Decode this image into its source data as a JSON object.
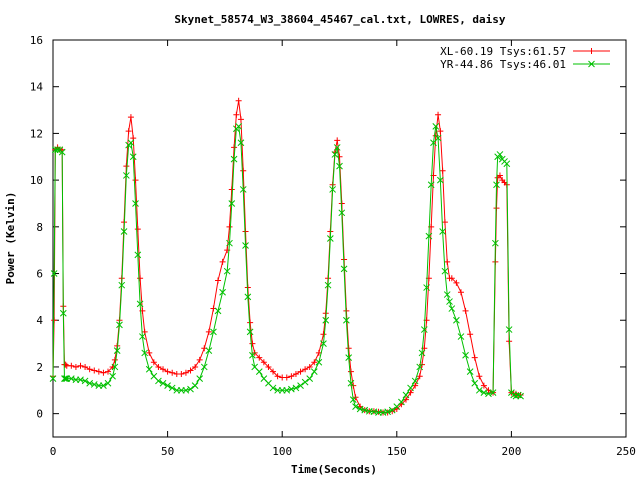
{
  "chart_data": {
    "type": "line",
    "title": "Skynet_58574_W3_38604_45467_cal.txt, LOWRES, daisy",
    "xlabel": "Time(Seconds)",
    "ylabel": "Power (Kelvin)",
    "xlim": [
      0,
      250
    ],
    "ylim": [
      -1,
      16
    ],
    "xticks": [
      0,
      50,
      100,
      150,
      200,
      250
    ],
    "yticks": [
      0,
      2,
      4,
      6,
      8,
      10,
      12,
      14,
      16
    ],
    "grid": false,
    "legend_position": "top-right",
    "series": [
      {
        "name": "XL-60.19 Tsys:61.57",
        "color": "#ff0000",
        "marker": "+",
        "x": [
          0,
          0.5,
          1,
          2,
          3,
          4,
          4.5,
          5,
          5.5,
          6,
          8,
          10,
          12,
          14,
          16,
          18,
          20,
          22,
          24,
          26,
          27,
          28,
          29,
          30,
          31,
          32,
          33,
          34,
          35,
          36,
          37,
          38,
          39,
          40,
          42,
          44,
          46,
          48,
          50,
          52,
          54,
          56,
          58,
          60,
          62,
          64,
          66,
          68,
          70,
          72,
          74,
          76,
          77,
          78,
          79,
          80,
          81,
          82,
          83,
          84,
          85,
          86,
          87,
          88,
          90,
          92,
          94,
          96,
          98,
          100,
          102,
          104,
          106,
          108,
          110,
          112,
          114,
          116,
          118,
          119,
          120,
          121,
          122,
          123,
          124,
          125,
          126,
          127,
          128,
          129,
          130,
          131,
          132,
          134,
          136,
          138,
          140,
          142,
          144,
          146,
          148,
          150,
          152,
          154,
          156,
          158,
          160,
          161,
          162,
          163,
          164,
          165,
          166,
          167,
          168,
          169,
          170,
          171,
          172,
          173,
          174,
          176,
          178,
          180,
          182,
          184,
          186,
          188,
          190,
          192,
          193,
          193.5,
          194,
          195,
          196,
          197,
          198,
          199,
          200,
          201,
          202,
          203,
          204
        ],
        "y": [
          1.6,
          4.0,
          11.3,
          11.4,
          11.3,
          11.3,
          4.6,
          2.1,
          2.1,
          2.05,
          2.05,
          2.0,
          2.05,
          2.0,
          1.9,
          1.85,
          1.8,
          1.75,
          1.8,
          2.0,
          2.3,
          2.9,
          4.0,
          5.8,
          8.2,
          10.6,
          12.1,
          12.7,
          11.8,
          10.0,
          7.9,
          5.8,
          4.4,
          3.5,
          2.6,
          2.2,
          2.0,
          1.9,
          1.8,
          1.75,
          1.7,
          1.7,
          1.75,
          1.85,
          2.0,
          2.3,
          2.8,
          3.5,
          4.5,
          5.7,
          6.5,
          7.0,
          8.0,
          9.6,
          11.4,
          12.8,
          13.4,
          12.6,
          10.4,
          7.8,
          5.4,
          3.9,
          3.0,
          2.6,
          2.4,
          2.2,
          2.0,
          1.8,
          1.6,
          1.55,
          1.55,
          1.6,
          1.7,
          1.8,
          1.9,
          2.0,
          2.2,
          2.6,
          3.4,
          4.3,
          5.8,
          7.8,
          9.8,
          11.2,
          11.7,
          11.0,
          9.0,
          6.6,
          4.4,
          2.8,
          1.8,
          1.2,
          0.7,
          0.3,
          0.15,
          0.1,
          0.1,
          0.08,
          0.05,
          0.05,
          0.1,
          0.2,
          0.4,
          0.6,
          0.9,
          1.2,
          1.6,
          2.1,
          2.8,
          4.0,
          5.8,
          8.0,
          10.2,
          11.9,
          12.8,
          12.1,
          10.4,
          8.2,
          6.5,
          5.8,
          5.8,
          5.6,
          5.2,
          4.4,
          3.4,
          2.4,
          1.6,
          1.2,
          1.0,
          0.9,
          6.5,
          8.8,
          10.1,
          10.2,
          10.0,
          9.9,
          9.8,
          3.1,
          0.9,
          0.85,
          0.85,
          0.8,
          0.8
        ]
      },
      {
        "name": "YR-44.86 Tsys:46.01",
        "color": "#00c000",
        "marker": "x",
        "x": [
          0,
          0.5,
          1,
          2,
          3,
          4,
          4.5,
          5,
          5.5,
          6,
          8,
          10,
          12,
          14,
          16,
          18,
          20,
          22,
          24,
          26,
          27,
          28,
          29,
          30,
          31,
          32,
          33,
          34,
          35,
          36,
          37,
          38,
          39,
          40,
          42,
          44,
          46,
          48,
          50,
          52,
          54,
          56,
          58,
          60,
          62,
          64,
          66,
          68,
          70,
          72,
          74,
          76,
          77,
          78,
          79,
          80,
          81,
          82,
          83,
          84,
          85,
          86,
          87,
          88,
          90,
          92,
          94,
          96,
          98,
          100,
          102,
          104,
          106,
          108,
          110,
          112,
          114,
          116,
          118,
          119,
          120,
          121,
          122,
          123,
          124,
          125,
          126,
          127,
          128,
          129,
          130,
          131,
          132,
          134,
          136,
          138,
          140,
          142,
          144,
          146,
          148,
          150,
          152,
          154,
          156,
          158,
          160,
          161,
          162,
          163,
          164,
          165,
          166,
          167,
          168,
          169,
          170,
          171,
          172,
          173,
          174,
          176,
          178,
          180,
          182,
          184,
          186,
          188,
          190,
          192,
          193,
          193.5,
          194,
          195,
          196,
          197,
          198,
          199,
          200,
          201,
          202,
          203,
          204
        ],
        "y": [
          1.5,
          6.0,
          11.3,
          11.3,
          11.3,
          11.2,
          4.3,
          1.5,
          1.5,
          1.5,
          1.5,
          1.45,
          1.45,
          1.4,
          1.3,
          1.25,
          1.2,
          1.2,
          1.3,
          1.6,
          2.0,
          2.7,
          3.8,
          5.5,
          7.8,
          10.2,
          11.5,
          11.6,
          11.0,
          9.0,
          6.8,
          4.7,
          3.3,
          2.6,
          1.9,
          1.6,
          1.4,
          1.3,
          1.2,
          1.1,
          1.0,
          1.0,
          1.0,
          1.05,
          1.2,
          1.5,
          2.0,
          2.7,
          3.5,
          4.4,
          5.2,
          6.1,
          7.3,
          9.0,
          10.9,
          12.2,
          12.3,
          11.6,
          9.6,
          7.2,
          5.0,
          3.5,
          2.5,
          2.0,
          1.8,
          1.5,
          1.3,
          1.1,
          1.0,
          1.0,
          1.0,
          1.05,
          1.1,
          1.2,
          1.35,
          1.5,
          1.8,
          2.2,
          3.0,
          4.0,
          5.5,
          7.5,
          9.6,
          11.1,
          11.4,
          10.6,
          8.6,
          6.2,
          4.0,
          2.4,
          1.3,
          0.6,
          0.3,
          0.2,
          0.15,
          0.1,
          0.08,
          0.05,
          0.05,
          0.08,
          0.15,
          0.3,
          0.5,
          0.8,
          1.1,
          1.4,
          2.0,
          2.6,
          3.6,
          5.4,
          7.6,
          9.8,
          11.6,
          12.3,
          11.8,
          10.0,
          7.8,
          6.1,
          5.1,
          4.8,
          4.5,
          4.0,
          3.3,
          2.5,
          1.8,
          1.3,
          1.0,
          0.9,
          0.85,
          0.9,
          7.3,
          9.8,
          11.0,
          11.1,
          10.9,
          10.8,
          10.7,
          3.6,
          0.9,
          0.8,
          0.75,
          0.8,
          0.75
        ]
      }
    ]
  }
}
